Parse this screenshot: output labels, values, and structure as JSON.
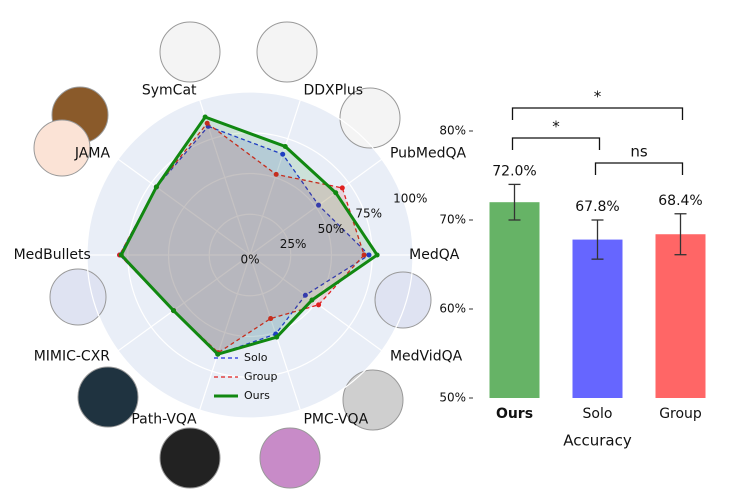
{
  "chart_data": [
    {
      "type": "radar",
      "categories": [
        "SymCat",
        "DDXPlus",
        "PubMedQA",
        "MedQA",
        "MedVidQA",
        "PMC-VQA",
        "Path-VQA",
        "MIMIC-CXR",
        "MedBullets",
        "JAMA"
      ],
      "ylim": [
        0,
        100
      ],
      "yticks": [
        {
          "value": 0,
          "label": "0%"
        },
        {
          "value": 25,
          "label": "25%"
        },
        {
          "value": 50,
          "label": "50%"
        },
        {
          "value": 75,
          "label": "75%"
        },
        {
          "value": 100,
          "label": "100%"
        }
      ],
      "series": [
        {
          "name": "Solo",
          "color": "#2233dd",
          "values": [
            83,
            65,
            52,
            73,
            42,
            51,
            64,
            58,
            80,
            71
          ]
        },
        {
          "name": "Group",
          "color": "#e02020",
          "values": [
            85,
            52,
            70,
            70,
            52,
            41,
            63,
            58,
            80,
            71
          ]
        },
        {
          "name": "Ours",
          "color": "#118811",
          "values": [
            89,
            70,
            65,
            78,
            47,
            53,
            64,
            58,
            79,
            71
          ]
        }
      ]
    },
    {
      "type": "bar",
      "categories": [
        "Ours",
        "Solo",
        "Group"
      ],
      "values": [
        72.0,
        67.8,
        68.4
      ],
      "value_labels": [
        "72.0%",
        "67.8%",
        "68.4%"
      ],
      "errors": [
        2.0,
        2.2,
        2.3
      ],
      "colors": [
        "#66b366",
        "#6666ff",
        "#ff6666"
      ],
      "xlabel": "Accuracy",
      "ylim": [
        50,
        80
      ],
      "yticks": [
        {
          "value": 50,
          "label": "50%"
        },
        {
          "value": 60,
          "label": "60%"
        },
        {
          "value": 70,
          "label": "70%"
        },
        {
          "value": 80,
          "label": "80%"
        }
      ],
      "annotations": [
        {
          "pair": [
            0,
            2
          ],
          "label": "*"
        },
        {
          "pair": [
            0,
            1
          ],
          "label": "*"
        },
        {
          "pair": [
            1,
            2
          ],
          "label": "ns"
        }
      ]
    }
  ]
}
